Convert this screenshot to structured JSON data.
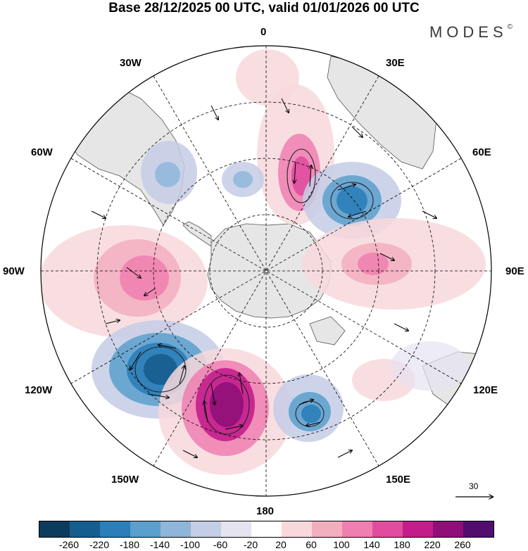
{
  "title": "Base 28/12/2025 00 UTC, valid 01/01/2026 00 UTC",
  "logo": "MODES",
  "logo_mark": "©",
  "longitude_labels": {
    "top": "0",
    "top_right": "30E",
    "right_upper": "60E",
    "right": "90E",
    "right_lower": "120E",
    "bottom_right": "150E",
    "bottom": "180",
    "bottom_left": "150W",
    "left_lower": "120W",
    "left": "90W",
    "left_upper": "60W",
    "top_left": "30W"
  },
  "reference_vector_label": "30",
  "colorbar": {
    "colors": [
      "#0b3b5e",
      "#165d8f",
      "#2c7eb8",
      "#5a9fcd",
      "#8fb6d9",
      "#c4cde6",
      "#e6e3f1",
      "#ffffff",
      "#f8d8dc",
      "#f3aebe",
      "#ef7fb0",
      "#e04c9f",
      "#c31d8c",
      "#8e0f78",
      "#530d6e"
    ],
    "ticks": [
      "-260",
      "-220",
      "-180",
      "-140",
      "-100",
      "-60",
      "-20",
      "20",
      "60",
      "100",
      "140",
      "180",
      "220",
      "260"
    ]
  },
  "colors": {
    "land": "#e6e6e6",
    "coast": "#555555",
    "grid": "#000000"
  }
}
